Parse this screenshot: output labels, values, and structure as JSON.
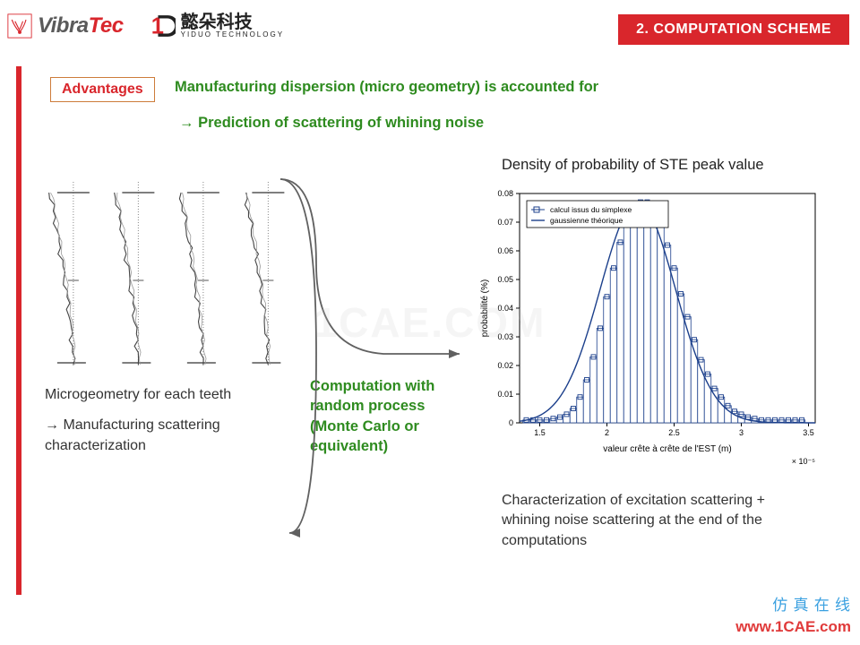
{
  "header": {
    "logo_vibra_v": "Vibra",
    "logo_vibra_tec": "Tec",
    "logo_yiduo_cn": "懿朵科技",
    "logo_yiduo_en": "YIDUO TECHNOLOGY",
    "section_badge": "2. COMPUTATION SCHEME"
  },
  "advantages": {
    "label": "Advantages",
    "line1": "Manufacturing dispersion (micro geometry) is accounted for",
    "line2_arrow": "→",
    "line2": "Prediction of scattering of whining noise"
  },
  "left_block": {
    "micro_label_1": "Microgeometry for each teeth",
    "micro_label_2_arrow": "→",
    "micro_label_2": "Manufacturing scattering characterization",
    "tooth_count": 4
  },
  "middle": {
    "label": "Computation with random process (Monte Carlo or equivalent)"
  },
  "right_block": {
    "chart_title": "Density of probability of STE peak value",
    "char_label": "Characterization of excitation scattering + whining noise scattering at the end of the computations"
  },
  "chart": {
    "type": "histogram+line",
    "legend": [
      "calcul issus du simplexe",
      "gaussienne théorique"
    ],
    "xlabel": "valeur crête à crête de l'EST (m)",
    "ylabel": "probabilité (%)",
    "x_exponent": "× 10⁻⁵",
    "xticks": [
      1.5,
      2,
      2.5,
      3,
      3.5
    ],
    "yticks": [
      0,
      0.01,
      0.02,
      0.03,
      0.04,
      0.05,
      0.06,
      0.07,
      0.08
    ],
    "xlim": [
      1.35,
      3.55
    ],
    "ylim": [
      0,
      0.08
    ],
    "bar_color": "#ffffff",
    "bar_edge": "#1b3f8b",
    "marker_edge": "#1b3f8b",
    "line_color": "#1b3f8b",
    "background": "#ffffff",
    "axis_color": "#000000",
    "tick_fontsize": 9,
    "label_fontsize": 10,
    "bins_x": [
      1.4,
      1.45,
      1.5,
      1.55,
      1.6,
      1.65,
      1.7,
      1.75,
      1.8,
      1.85,
      1.9,
      1.95,
      2.0,
      2.05,
      2.1,
      2.15,
      2.2,
      2.25,
      2.3,
      2.35,
      2.4,
      2.45,
      2.5,
      2.55,
      2.6,
      2.65,
      2.7,
      2.75,
      2.8,
      2.85,
      2.9,
      2.95,
      3.0,
      3.05,
      3.1,
      3.15,
      3.2,
      3.25,
      3.3,
      3.35,
      3.4,
      3.45
    ],
    "bins_y": [
      0.001,
      0.001,
      0.001,
      0.001,
      0.0015,
      0.002,
      0.003,
      0.005,
      0.009,
      0.015,
      0.023,
      0.033,
      0.044,
      0.054,
      0.063,
      0.07,
      0.075,
      0.077,
      0.077,
      0.074,
      0.069,
      0.062,
      0.054,
      0.045,
      0.037,
      0.029,
      0.022,
      0.017,
      0.012,
      0.009,
      0.006,
      0.004,
      0.003,
      0.002,
      0.0015,
      0.001,
      0.001,
      0.001,
      0.001,
      0.001,
      0.001,
      0.001
    ],
    "gauss_mu": 2.23,
    "gauss_sigma": 0.28,
    "gauss_peak": 0.077
  },
  "watermark": {
    "center": "1CAE.COM",
    "cn": "仿 真 在 线",
    "url": "www.1CAE.com"
  },
  "colors": {
    "red": "#d9262c",
    "green": "#2e8b1f",
    "orange_border": "#cd7c3a",
    "text": "#333333"
  }
}
